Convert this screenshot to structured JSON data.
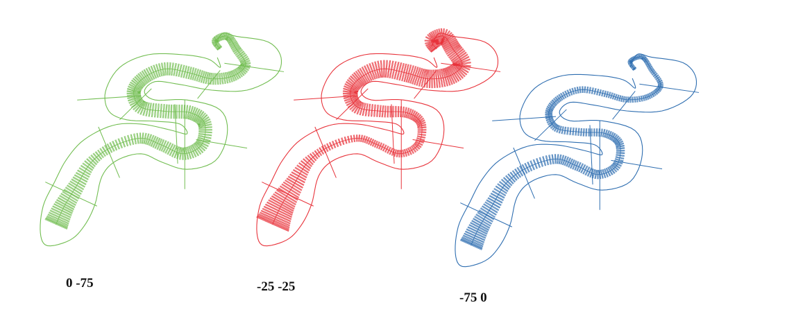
{
  "panels": [
    {
      "caption": "0 -75",
      "color": "#71bd50"
    },
    {
      "caption": "-25 -25",
      "color": "#e8323a"
    },
    {
      "caption": "-75 0",
      "color": "#2d6db0"
    }
  ]
}
